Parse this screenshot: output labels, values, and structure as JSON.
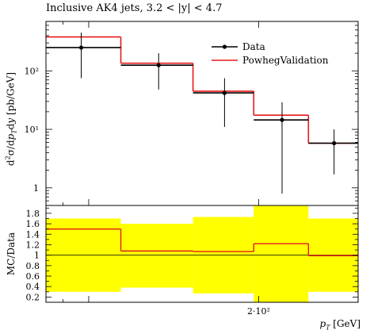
{
  "title": "Inclusive AK4 jets, 3.2 < |y| < 4.7",
  "colors": {
    "data": "#000000",
    "mc": "#e41a1c",
    "band": "#ffff00"
  },
  "chart_data": [
    {
      "type": "line",
      "panel": "main",
      "ylabel": "d²σ/dp_T dy [pb/GeV]",
      "yscale": "log",
      "ylim": [
        0.5,
        700
      ],
      "yticks": [
        {
          "value": 1,
          "label": "1"
        },
        {
          "value": 10,
          "label": "10¹"
        },
        {
          "value": 100,
          "label": "10²"
        }
      ],
      "bins": [
        [
          84,
          114
        ],
        [
          114,
          153
        ],
        [
          153,
          196
        ],
        [
          196,
          245
        ],
        [
          245,
          300
        ]
      ],
      "series": [
        {
          "name": "Data",
          "x": [
            97,
            133,
            174,
            220,
            272
          ],
          "values": [
            250,
            125,
            42,
            14.5,
            5.8
          ],
          "yerr_low": [
            175,
            77,
            31,
            13.7,
            4.1
          ],
          "yerr_high": [
            200,
            75,
            33,
            14.5,
            4.2
          ]
        },
        {
          "name": "PowhegValidation",
          "values": [
            380,
            135,
            45,
            17.5,
            5.8
          ]
        }
      ],
      "legend": "top-right"
    },
    {
      "type": "line",
      "panel": "ratio",
      "ylabel": "MC/Data",
      "ylim": [
        0.1,
        1.95
      ],
      "yticks": [
        {
          "value": 0.2,
          "label": "0.2"
        },
        {
          "value": 0.4,
          "label": "0.4"
        },
        {
          "value": 0.6,
          "label": "0.6"
        },
        {
          "value": 0.8,
          "label": "0.8"
        },
        {
          "value": 1.0,
          "label": "1"
        },
        {
          "value": 1.2,
          "label": "1.2"
        },
        {
          "value": 1.4,
          "label": "1.4"
        },
        {
          "value": 1.6,
          "label": "1.6"
        },
        {
          "value": 1.8,
          "label": "1.8"
        }
      ],
      "ratio_values": [
        1.5,
        1.08,
        1.07,
        1.22,
        0.99
      ],
      "band_low": [
        0.3,
        0.38,
        0.27,
        0.1,
        0.3
      ],
      "band_high": [
        1.7,
        1.6,
        1.73,
        1.95,
        1.7
      ]
    }
  ],
  "xaxis": {
    "label": "p_T [GeV]",
    "scale": "log",
    "xlim": [
      84,
      300
    ],
    "tick_label": "2·10²",
    "tick_value": 200
  }
}
